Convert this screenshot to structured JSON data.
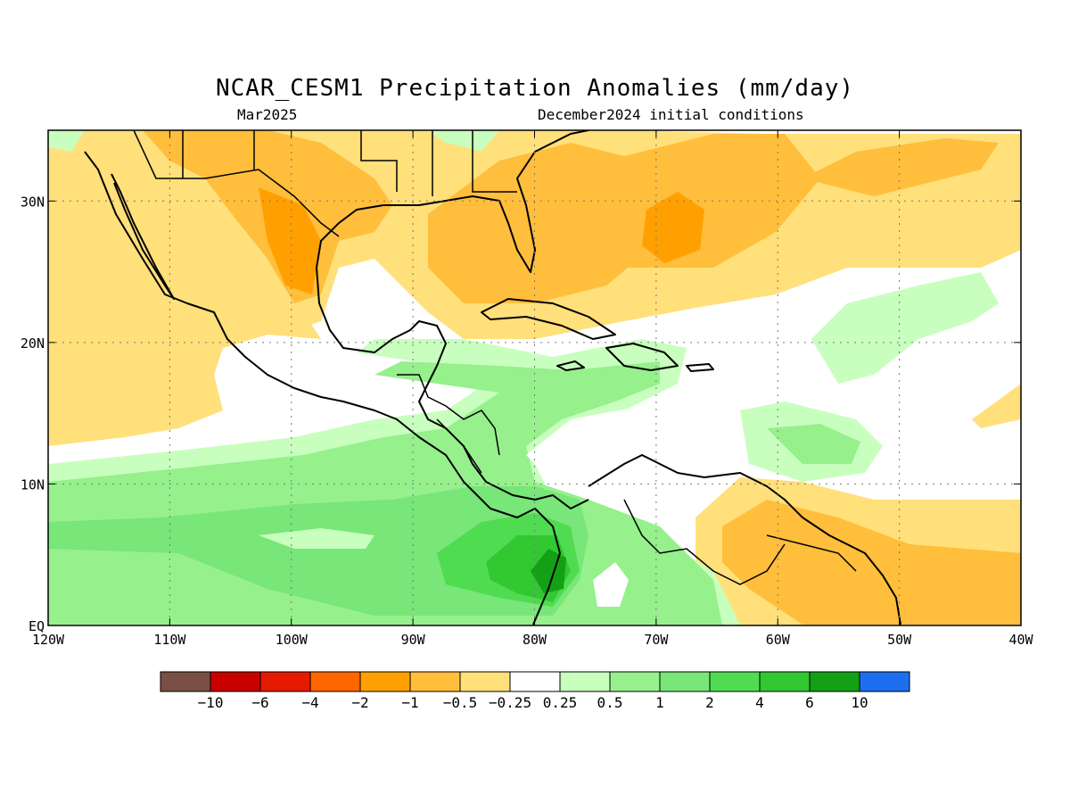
{
  "title": "NCAR_CESM1 Precipitation Anomalies (mm/day)",
  "subtitle_left": "Mar2025",
  "subtitle_right": "December2024 initial conditions",
  "map": {
    "lon_range": [
      -120,
      -40
    ],
    "lat_range": [
      0,
      35
    ],
    "lon_ticks": [
      {
        "value": -120,
        "label": "120W"
      },
      {
        "value": -110,
        "label": "110W"
      },
      {
        "value": -100,
        "label": "100W"
      },
      {
        "value": -90,
        "label": "90W"
      },
      {
        "value": -80,
        "label": "80W"
      },
      {
        "value": -70,
        "label": "70W"
      },
      {
        "value": -60,
        "label": "60W"
      },
      {
        "value": -50,
        "label": "50W"
      },
      {
        "value": -40,
        "label": "40W"
      }
    ],
    "lat_ticks": [
      {
        "value": 0,
        "label": "EQ"
      },
      {
        "value": 10,
        "label": "10N"
      },
      {
        "value": 20,
        "label": "20N"
      },
      {
        "value": 30,
        "label": "30N"
      }
    ],
    "grid": true
  },
  "colorbar": {
    "colors": [
      "#7a4f44",
      "#c80000",
      "#e61a00",
      "#ff6600",
      "#ffa000",
      "#ffbe3c",
      "#ffe07a",
      "#ffffff",
      "#c8ffbe",
      "#96f08c",
      "#78e678",
      "#50dc50",
      "#32c832",
      "#14a014",
      "#1e6ef0"
    ],
    "labels": [
      "−10",
      "−6",
      "−4",
      "−2",
      "−1",
      "−0.5",
      "−0.25",
      "0.25",
      "0.5",
      "1",
      "2",
      "4",
      "6",
      "10"
    ]
  },
  "palette": {
    "dry_light": "#ffe07a",
    "dry_mid": "#ffbe3c",
    "dry_strong": "#ffa000",
    "dry_heavy": "#ff6600",
    "wet_light": "#c8ffbe",
    "wet_mid": "#96f08c",
    "wet_strong": "#78e678",
    "wet_heavy": "#50dc50",
    "wet_very": "#32c832",
    "wet_extreme": "#14a014"
  }
}
